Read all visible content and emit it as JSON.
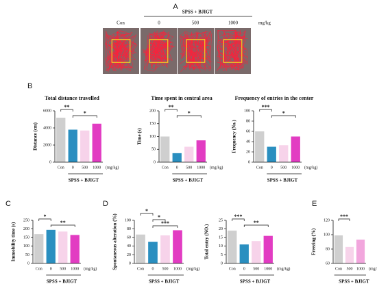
{
  "panel_a": {
    "letter": "A",
    "group_label": "SPSS + BJIGT",
    "labels": [
      "Con",
      "0",
      "500",
      "1000"
    ],
    "unit": "mg/kg"
  },
  "chart_data": [
    {
      "type": "bar",
      "panel": "B",
      "title": "Total distance travelled",
      "ylabel": "Distance (cm)",
      "categories": [
        "Con",
        "0",
        "500",
        "1000"
      ],
      "values": [
        5200,
        3800,
        3700,
        4500
      ],
      "colors": [
        "#cfcfcf",
        "#2a8fc0",
        "#f7d3ea",
        "#e23cc2"
      ],
      "ylim": [
        0,
        6000
      ],
      "yticks": [
        0,
        2000,
        4000,
        6000
      ],
      "unit_label": "(mg/kg)",
      "group_label": "SPSS + BJIGT",
      "significance": [
        {
          "from": 0,
          "to": 1,
          "label": "**"
        },
        {
          "from": 1,
          "to": 3,
          "label": "*"
        }
      ]
    },
    {
      "type": "bar",
      "title": "Time spent in central area",
      "ylabel": "Time (s)",
      "categories": [
        "Con",
        "0",
        "500",
        "1000"
      ],
      "values": [
        100,
        35,
        60,
        85
      ],
      "colors": [
        "#cfcfcf",
        "#2a8fc0",
        "#f7d3ea",
        "#e23cc2"
      ],
      "ylim": [
        0,
        200
      ],
      "yticks": [
        0,
        50,
        100,
        150,
        200
      ],
      "unit_label": "(mg/kg)",
      "group_label": "SPSS + BJIGT",
      "significance": [
        {
          "from": 0,
          "to": 1,
          "label": "**"
        },
        {
          "from": 1,
          "to": 3,
          "label": "*"
        }
      ]
    },
    {
      "type": "bar",
      "title": "Frequency of entries in the center",
      "ylabel": "Frequency (No.)",
      "categories": [
        "Con",
        "0",
        "500",
        "1000"
      ],
      "values": [
        60,
        30,
        33,
        50
      ],
      "colors": [
        "#cfcfcf",
        "#2a8fc0",
        "#f7d3ea",
        "#e23cc2"
      ],
      "ylim": [
        0,
        100
      ],
      "yticks": [
        0,
        20,
        40,
        60,
        80,
        100
      ],
      "unit_label": "(mg/kg)",
      "group_label": "SPSS + BJIGT",
      "significance": [
        {
          "from": 0,
          "to": 1,
          "label": "***"
        },
        {
          "from": 1,
          "to": 3,
          "label": "*"
        }
      ]
    },
    {
      "type": "bar",
      "panel": "C",
      "ylabel": "Immobility time (s)",
      "categories": [
        "Con",
        "0",
        "500",
        "1000"
      ],
      "values": [
        170,
        195,
        185,
        165
      ],
      "colors": [
        "#cfcfcf",
        "#2a8fc0",
        "#f7d3ea",
        "#e23cc2"
      ],
      "ylim": [
        0,
        250
      ],
      "yticks": [
        0,
        50,
        100,
        150,
        200,
        250
      ],
      "unit_label": "(mg/kg)",
      "group_label": "SPSS + BJIGT",
      "significance": [
        {
          "from": 0,
          "to": 1,
          "label": "*"
        },
        {
          "from": 1,
          "to": 3,
          "label": "**"
        }
      ]
    },
    {
      "type": "bar",
      "panel": "D",
      "ylabel": "Spontaneous alteration (%)",
      "categories": [
        "Con",
        "0",
        "500",
        "1000"
      ],
      "values": [
        67,
        50,
        65,
        77
      ],
      "colors": [
        "#cfcfcf",
        "#2a8fc0",
        "#f7d3ea",
        "#e23cc2"
      ],
      "ylim": [
        0,
        100
      ],
      "yticks": [
        0,
        20,
        40,
        60,
        80,
        100
      ],
      "unit_label": "(mg/kg)",
      "group_label": "SPSS + BJIGT",
      "significance": [
        {
          "from": 0,
          "to": 1,
          "label": "*"
        },
        {
          "from": 1,
          "to": 2,
          "label": "*"
        },
        {
          "from": 1,
          "to": 3,
          "label": "***"
        }
      ]
    },
    {
      "type": "bar",
      "ylabel": "Total entry (NO.)",
      "categories": [
        "Con",
        "0",
        "500",
        "1000"
      ],
      "values": [
        19,
        11,
        13,
        16
      ],
      "colors": [
        "#cfcfcf",
        "#2a8fc0",
        "#f7d3ea",
        "#e23cc2"
      ],
      "ylim": [
        0,
        25
      ],
      "yticks": [
        0,
        5,
        10,
        15,
        20,
        25
      ],
      "unit_label": "(mg/kg)",
      "group_label": "SPSS + BJIGT",
      "significance": [
        {
          "from": 0,
          "to": 1,
          "label": "***"
        },
        {
          "from": 1,
          "to": 3,
          "label": "**"
        }
      ]
    },
    {
      "type": "bar",
      "panel": "E",
      "ylabel": "Freezing (%)",
      "categories": [
        "Con",
        "500",
        "1000"
      ],
      "values": [
        99,
        83,
        93
      ],
      "colors": [
        "#cfcfcf",
        "#f7d3ea",
        "#f2a6dd"
      ],
      "ylim": [
        60,
        120
      ],
      "yticks": [
        60,
        80,
        100,
        120
      ],
      "unit_label": "(mg/kg)",
      "group_label": "SPSS + BJIGT",
      "significance": [
        {
          "from": 0,
          "to": 1,
          "label": "***"
        }
      ]
    }
  ]
}
